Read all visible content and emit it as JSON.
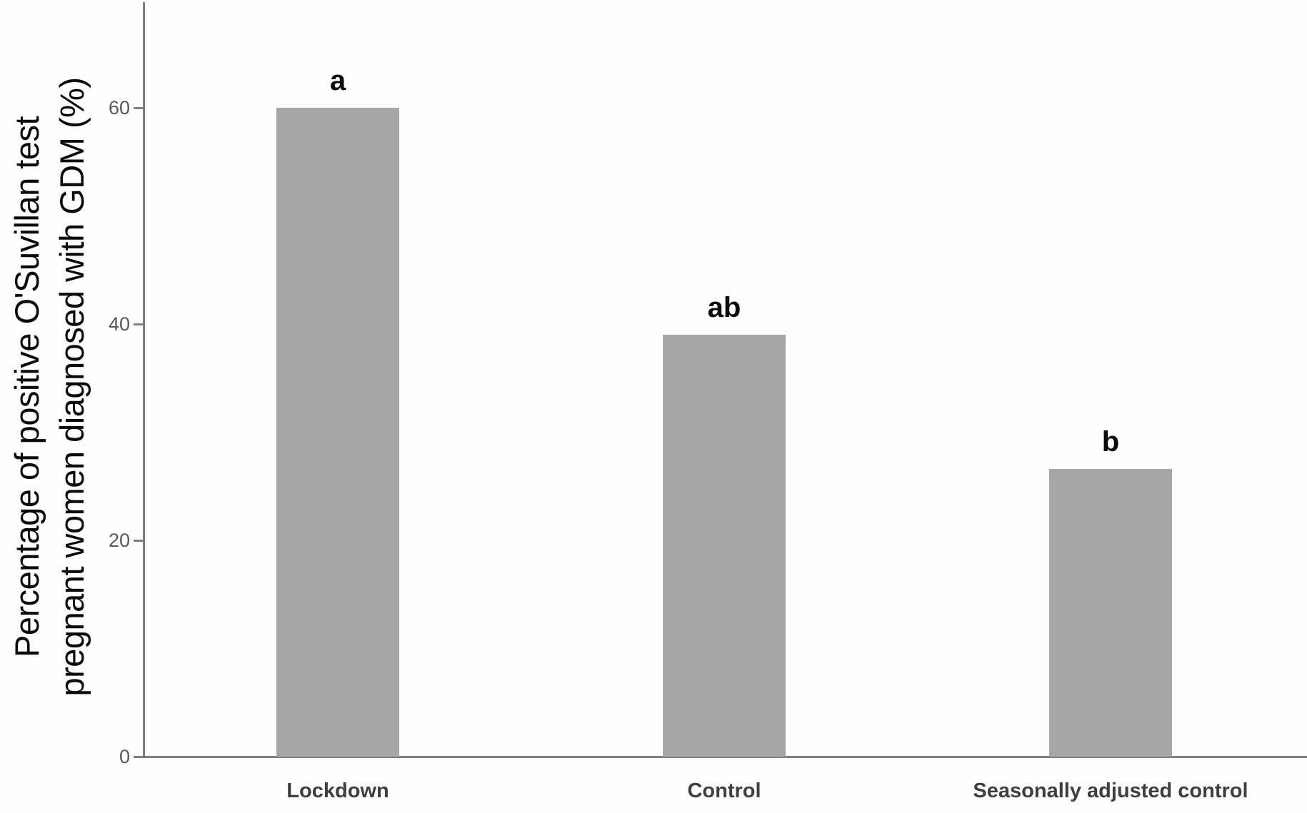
{
  "chart_data": {
    "type": "bar",
    "title": "",
    "ylabel_line1": "Percentage of positive O'Suvillan test",
    "ylabel_line2": "pregnant women diagnosed with GDM (%)",
    "xlabel": "",
    "categories": [
      "Lockdown",
      "Control",
      "Seasonally adjusted control"
    ],
    "values": [
      60,
      39,
      26.6
    ],
    "significance_labels": [
      "a",
      "ab",
      "b"
    ],
    "yticks": [
      0,
      20,
      40,
      60
    ],
    "ylim": [
      0,
      70
    ],
    "grid": false,
    "legend": false,
    "bar_color": "#a6a6a6",
    "axis_color": "#7f7f7f",
    "tick_label_color": "#595959",
    "category_label_color": "#3f3f3f",
    "significance_label_color": "#0a0a0a"
  }
}
